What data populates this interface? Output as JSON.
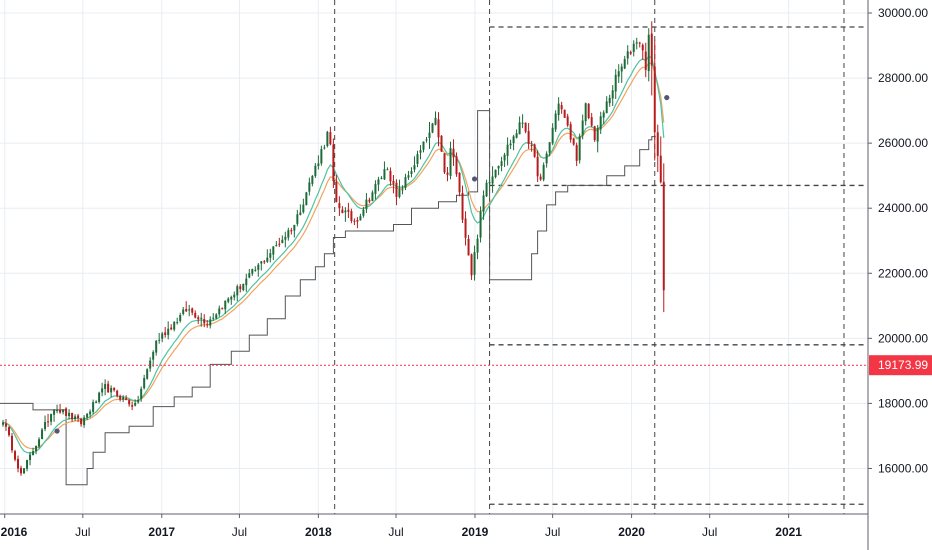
{
  "chart_data": {
    "type": "candlestick",
    "title": "",
    "xlabel": "",
    "ylabel": "",
    "ylim": [
      14600,
      30400
    ],
    "xlim": [
      "2015-12-21",
      "2021-07-05"
    ],
    "grid": true,
    "colors": {
      "up": "#1e6b3a",
      "down": "#b71c1c",
      "ema_fast": "#4fc3a1",
      "ema_slow": "#f2a35e",
      "step": "#555555",
      "last_price": "#f23645",
      "level": "#444444",
      "grid": "#e8edf2"
    },
    "x_ticks": [
      {
        "date": "2016-01-01",
        "label": "2016",
        "bold": true
      },
      {
        "date": "2016-07-01",
        "label": "Jul",
        "bold": false
      },
      {
        "date": "2017-01-01",
        "label": "2017",
        "bold": true
      },
      {
        "date": "2017-07-01",
        "label": "Jul",
        "bold": false
      },
      {
        "date": "2018-01-01",
        "label": "2018",
        "bold": true
      },
      {
        "date": "2018-07-01",
        "label": "Jul",
        "bold": false
      },
      {
        "date": "2019-01-01",
        "label": "2019",
        "bold": true
      },
      {
        "date": "2019-07-01",
        "label": "Jul",
        "bold": false
      },
      {
        "date": "2020-01-01",
        "label": "2020",
        "bold": true
      },
      {
        "date": "2020-07-01",
        "label": "Jul",
        "bold": false
      },
      {
        "date": "2021-01-01",
        "label": "2021",
        "bold": true
      }
    ],
    "y_ticks": [
      {
        "value": 16000,
        "label": "16000.00"
      },
      {
        "value": 18000,
        "label": "18000.00"
      },
      {
        "value": 20000,
        "label": "20000.00"
      },
      {
        "value": 22000,
        "label": "22000.00"
      },
      {
        "value": 24000,
        "label": "24000.00"
      },
      {
        "value": 26000,
        "label": "26000.00"
      },
      {
        "value": 28000,
        "label": "28000.00"
      },
      {
        "value": 30000,
        "label": "30000.00"
      }
    ],
    "last_price": {
      "value": 19173.99,
      "label": "19173.99"
    },
    "vertical_lines": [
      "2018-02-08",
      "2019-02-04",
      "2020-02-24",
      "2021-05-10"
    ],
    "level_lines": [
      {
        "value": 29570,
        "from": "2019-02-04",
        "to": "2021-07-05"
      },
      {
        "value": 24700,
        "from": "2019-02-04",
        "to": "2021-07-05"
      },
      {
        "value": 19800,
        "from": "2019-02-04",
        "to": "2021-07-05"
      },
      {
        "value": 14900,
        "from": "2019-02-04",
        "to": "2021-07-05"
      }
    ],
    "anchors": [
      {
        "date": "2015-12-28",
        "value": 17500
      },
      {
        "date": "2016-02-08",
        "value": 15800
      },
      {
        "date": "2016-04-25",
        "value": 17900
      },
      {
        "date": "2016-06-27",
        "value": 17400
      },
      {
        "date": "2016-08-22",
        "value": 18500
      },
      {
        "date": "2016-11-01",
        "value": 17900
      },
      {
        "date": "2016-12-19",
        "value": 19900
      },
      {
        "date": "2017-03-01",
        "value": 20900
      },
      {
        "date": "2017-04-17",
        "value": 20500
      },
      {
        "date": "2017-08-07",
        "value": 22100
      },
      {
        "date": "2017-11-06",
        "value": 23500
      },
      {
        "date": "2018-01-26",
        "value": 26400
      },
      {
        "date": "2018-02-08",
        "value": 24200
      },
      {
        "date": "2018-03-23",
        "value": 23600
      },
      {
        "date": "2018-04-02",
        "value": 23700
      },
      {
        "date": "2018-06-11",
        "value": 25300
      },
      {
        "date": "2018-07-02",
        "value": 24300
      },
      {
        "date": "2018-10-03",
        "value": 26700
      },
      {
        "date": "2018-10-26",
        "value": 24700
      },
      {
        "date": "2018-11-07",
        "value": 26000
      },
      {
        "date": "2018-12-24",
        "value": 22000
      },
      {
        "date": "2019-01-25",
        "value": 24700
      },
      {
        "date": "2019-04-23",
        "value": 26700
      },
      {
        "date": "2019-06-03",
        "value": 24800
      },
      {
        "date": "2019-07-15",
        "value": 27300
      },
      {
        "date": "2019-08-26",
        "value": 25600
      },
      {
        "date": "2019-09-16",
        "value": 27100
      },
      {
        "date": "2019-10-07",
        "value": 26200
      },
      {
        "date": "2019-11-29",
        "value": 28100
      },
      {
        "date": "2020-01-17",
        "value": 29300
      },
      {
        "date": "2020-02-03",
        "value": 28400
      },
      {
        "date": "2020-02-12",
        "value": 29550
      },
      {
        "date": "2020-02-28",
        "value": 25400
      },
      {
        "date": "2020-03-06",
        "value": 25900
      },
      {
        "date": "2020-03-13",
        "value": 23200
      },
      {
        "date": "2020-03-20",
        "value": 19180
      }
    ],
    "step_line": [
      {
        "date": "2015-12-21",
        "value": 18000
      },
      {
        "date": "2016-03-07",
        "value": 17800
      },
      {
        "date": "2016-05-23",
        "value": 15500
      },
      {
        "date": "2016-07-11",
        "value": 16000
      },
      {
        "date": "2016-07-25",
        "value": 16500
      },
      {
        "date": "2016-08-22",
        "value": 17100
      },
      {
        "date": "2016-10-17",
        "value": 17300
      },
      {
        "date": "2016-12-12",
        "value": 17900
      },
      {
        "date": "2017-01-30",
        "value": 18200
      },
      {
        "date": "2017-03-13",
        "value": 18500
      },
      {
        "date": "2017-04-24",
        "value": 19200
      },
      {
        "date": "2017-06-12",
        "value": 19600
      },
      {
        "date": "2017-07-24",
        "value": 20100
      },
      {
        "date": "2017-09-04",
        "value": 20600
      },
      {
        "date": "2017-10-16",
        "value": 21300
      },
      {
        "date": "2017-11-20",
        "value": 21800
      },
      {
        "date": "2017-12-25",
        "value": 22200
      },
      {
        "date": "2018-01-15",
        "value": 22600
      },
      {
        "date": "2018-02-05",
        "value": 23100
      },
      {
        "date": "2018-03-05",
        "value": 23300
      },
      {
        "date": "2018-06-25",
        "value": 23500
      },
      {
        "date": "2018-08-06",
        "value": 24000
      },
      {
        "date": "2018-10-08",
        "value": 24200
      },
      {
        "date": "2018-11-19",
        "value": 24400
      },
      {
        "date": "2018-12-17",
        "value": 24500
      },
      {
        "date": "2019-01-07",
        "value": 27000
      },
      {
        "date": "2019-02-04",
        "value": 21800
      },
      {
        "date": "2019-05-13",
        "value": 22600
      },
      {
        "date": "2019-05-27",
        "value": 23300
      },
      {
        "date": "2019-06-17",
        "value": 24100
      },
      {
        "date": "2019-07-08",
        "value": 24500
      },
      {
        "date": "2019-08-05",
        "value": 24700
      },
      {
        "date": "2019-11-04",
        "value": 25000
      },
      {
        "date": "2019-12-16",
        "value": 25300
      },
      {
        "date": "2020-01-20",
        "value": 25800
      },
      {
        "date": "2020-02-10",
        "value": 26100
      },
      {
        "date": "2020-02-17",
        "value": 26200
      }
    ],
    "markers": [
      {
        "date": "2016-05-02",
        "value": 17150
      },
      {
        "date": "2018-12-31",
        "value": 24900
      },
      {
        "date": "2020-03-23",
        "value": 27400
      }
    ]
  }
}
